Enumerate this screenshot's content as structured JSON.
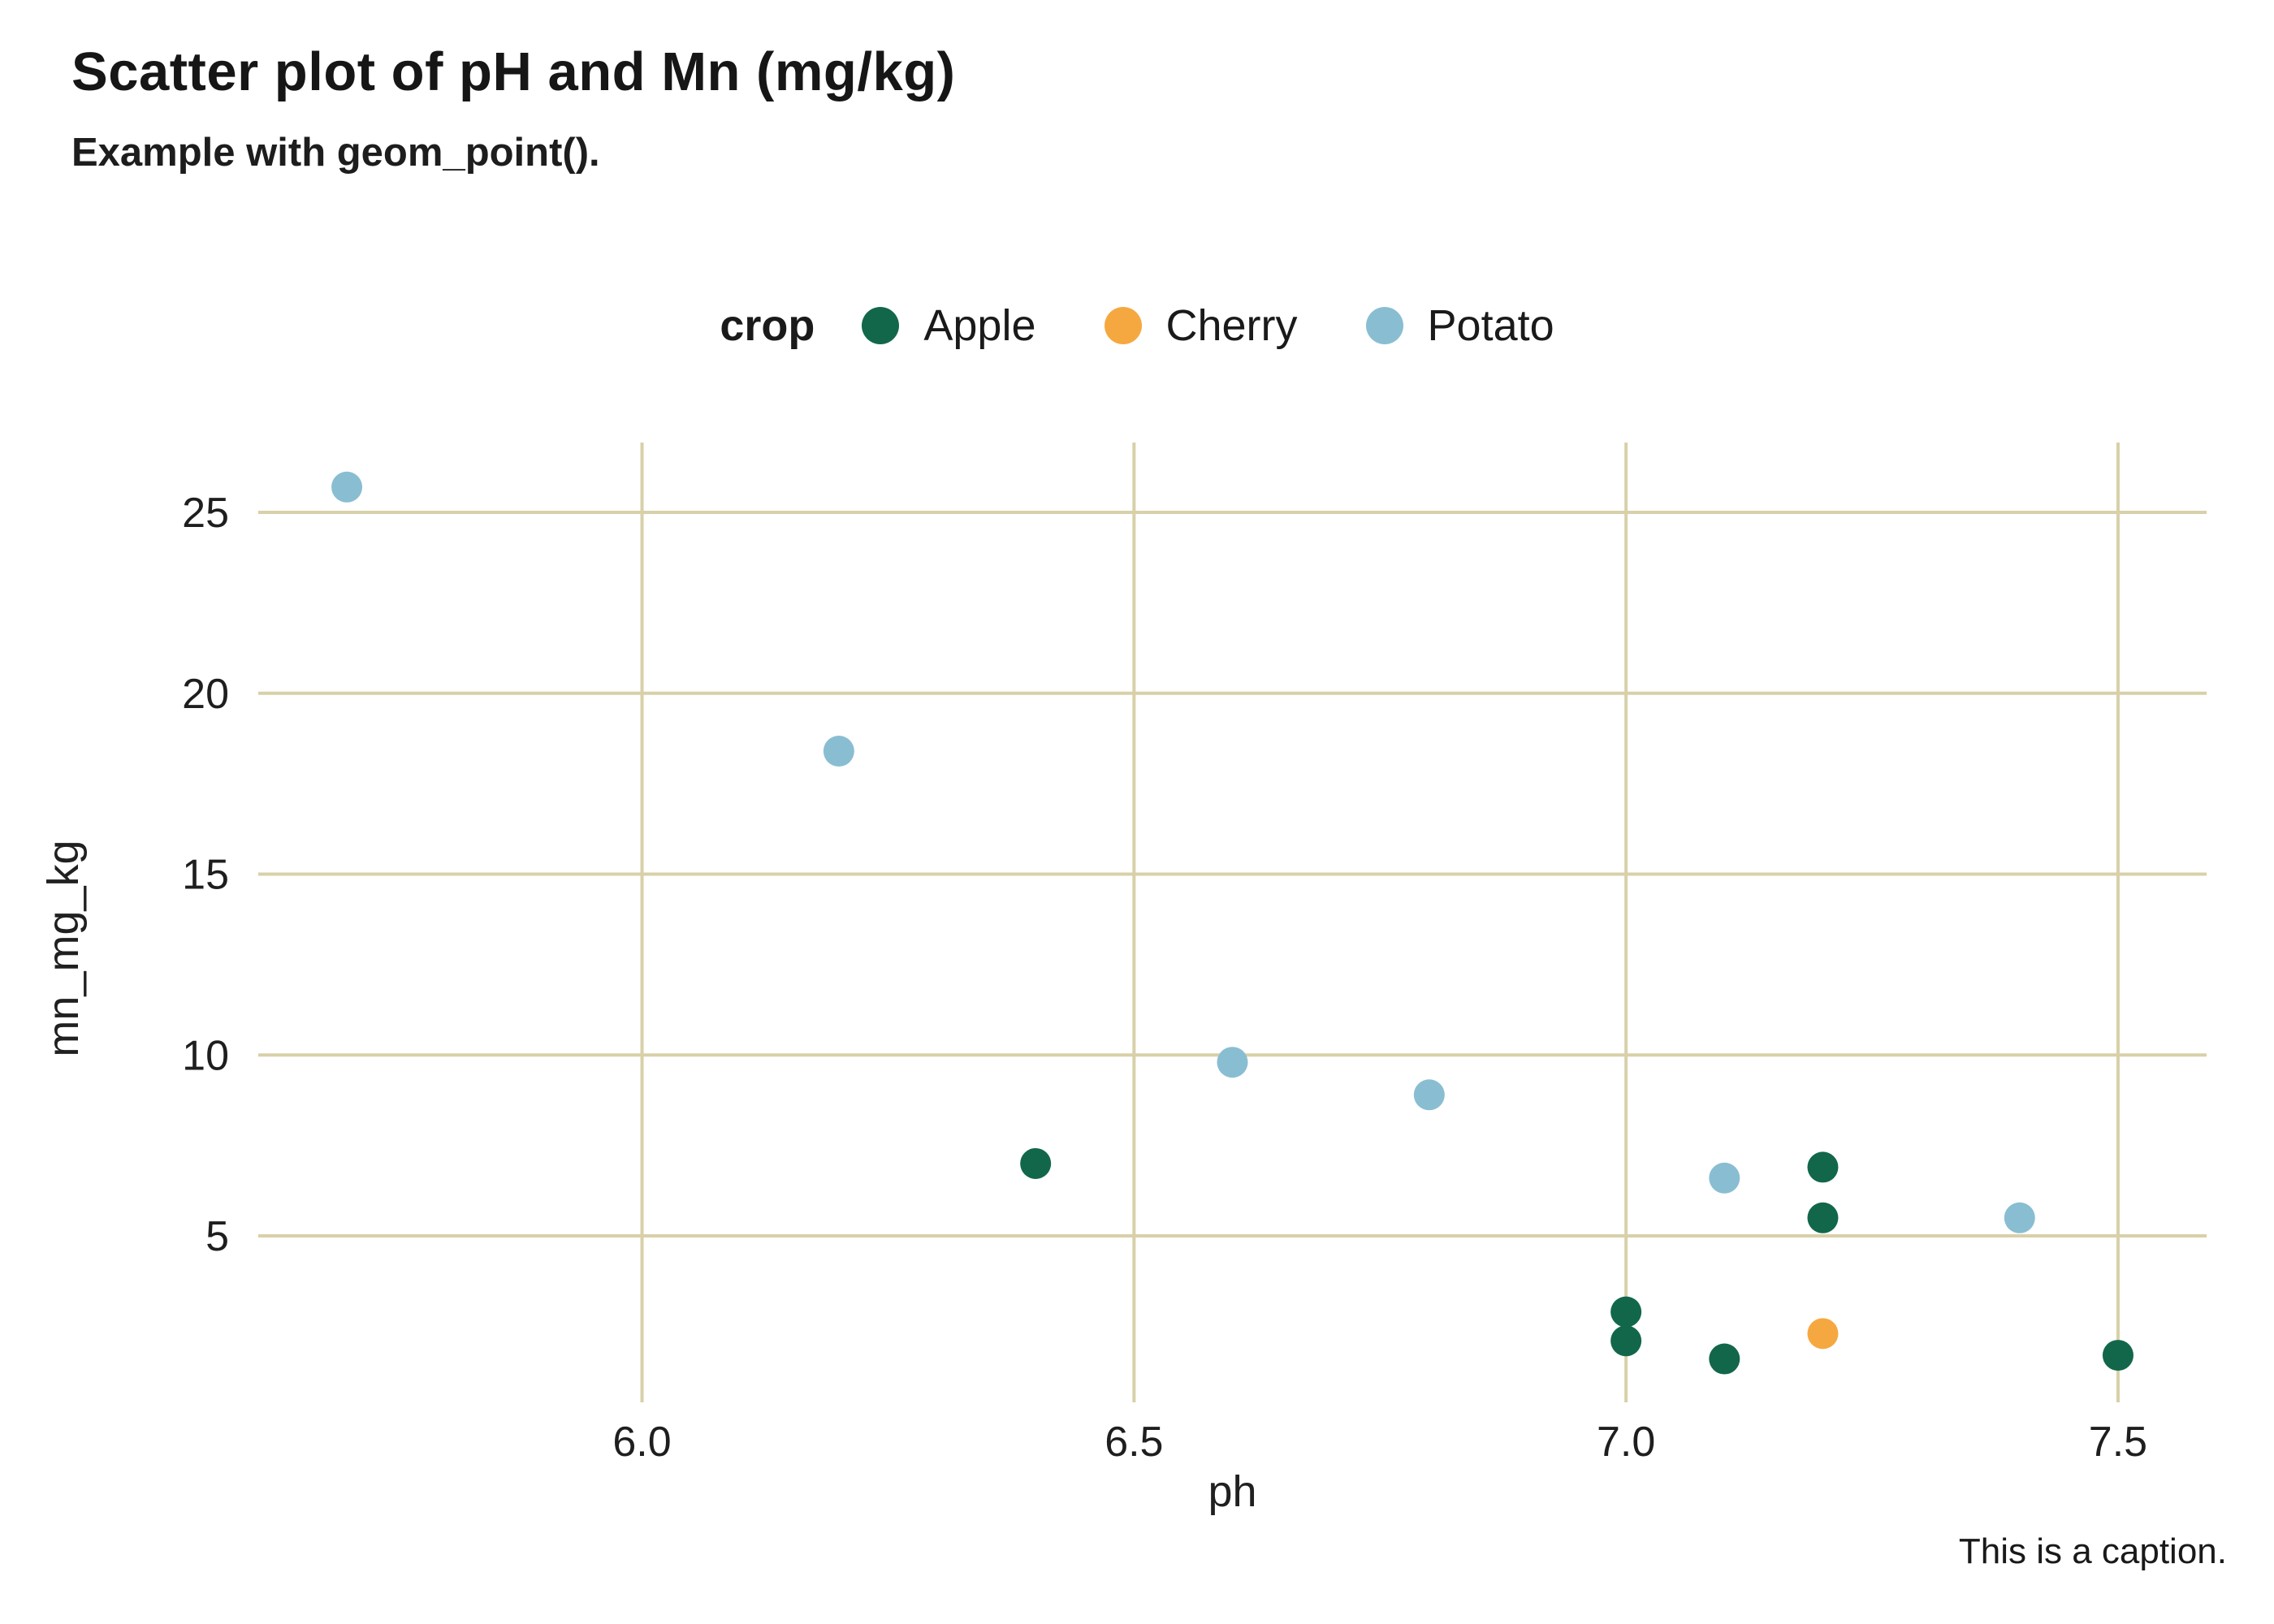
{
  "header": {
    "title": "Scatter plot of pH and Mn (mg/kg)",
    "subtitle": "Example with geom_point()."
  },
  "legend": {
    "title": "crop",
    "items": [
      {
        "label": "Apple",
        "color": "#12674A"
      },
      {
        "label": "Cherry",
        "color": "#F6A840"
      },
      {
        "label": "Potato",
        "color": "#89BED2"
      }
    ]
  },
  "axes": {
    "x_label": "ph",
    "y_label": "mn_mg_kg"
  },
  "caption": "This is a caption.",
  "colors": {
    "gridline": "#D8D0A8",
    "tick_text": "#1E1E1E",
    "title_text": "#161616"
  },
  "chart_data": {
    "type": "scatter",
    "title": "Scatter plot of pH and Mn (mg/kg)",
    "subtitle": "Example with geom_point().",
    "xlabel": "ph",
    "ylabel": "mn_mg_kg",
    "xlim": [
      5.61,
      7.59
    ],
    "ylim": [
      0.4,
      26.93
    ],
    "x_ticks": [
      6.0,
      6.5,
      7.0,
      7.5
    ],
    "x_tick_labels": [
      "6.0",
      "6.5",
      "7.0",
      "7.5"
    ],
    "y_ticks": [
      5,
      10,
      15,
      20,
      25
    ],
    "y_tick_labels": [
      "5",
      "10",
      "15",
      "20",
      "25"
    ],
    "grid": true,
    "legend_position": "top",
    "point_radius": 19,
    "series": [
      {
        "name": "Apple",
        "color": "#12674A",
        "points": [
          [
            6.4,
            7.0
          ],
          [
            7.2,
            6.9
          ],
          [
            7.2,
            5.5
          ],
          [
            7.0,
            2.9
          ],
          [
            7.0,
            2.1
          ],
          [
            7.1,
            1.6
          ],
          [
            7.5,
            1.7
          ]
        ]
      },
      {
        "name": "Cherry",
        "color": "#F6A840",
        "points": [
          [
            7.2,
            2.3
          ]
        ]
      },
      {
        "name": "Potato",
        "color": "#89BED2",
        "points": [
          [
            5.7,
            25.7
          ],
          [
            6.2,
            18.4
          ],
          [
            6.6,
            9.8
          ],
          [
            6.8,
            8.9
          ],
          [
            7.1,
            6.6
          ],
          [
            7.4,
            5.5
          ]
        ]
      }
    ]
  }
}
